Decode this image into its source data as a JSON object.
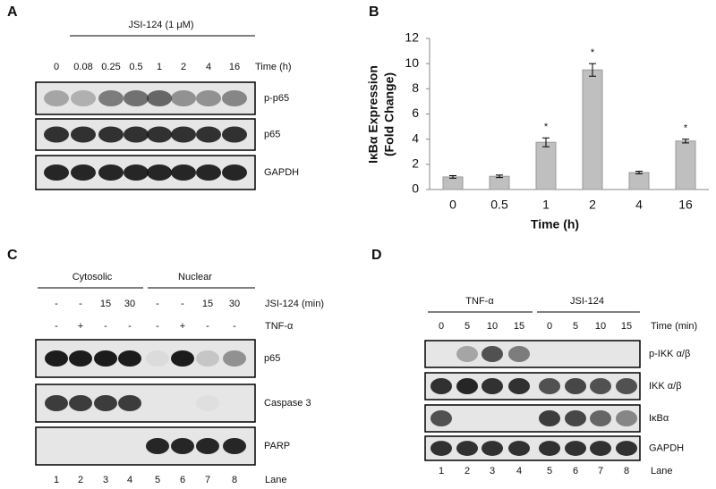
{
  "panel_a": {
    "letter": "A",
    "treatment": "JSI-124 (1 μM)",
    "times": [
      "0",
      "0.08",
      "0.25",
      "0.5",
      "1",
      "2",
      "4",
      "16"
    ],
    "time_label": "Time (h)",
    "blots": [
      "p-p65",
      "p65",
      "GAPDH"
    ]
  },
  "chart_data": {
    "type": "bar",
    "letter": "B",
    "categories": [
      "0",
      "0.5",
      "1",
      "2",
      "4",
      "16"
    ],
    "values": [
      1.0,
      1.05,
      3.75,
      9.5,
      1.35,
      3.85
    ],
    "errors": [
      0.1,
      0.1,
      0.35,
      0.5,
      0.1,
      0.15
    ],
    "markers": [
      null,
      null,
      "*",
      "*",
      null,
      "*"
    ],
    "color": "#bfbfbf",
    "ylabel": [
      "IκBα Expression",
      "(Fold Change)"
    ],
    "xlabel": "Time (h)",
    "ylim": [
      0,
      12
    ],
    "yticks": [
      0,
      2,
      4,
      6,
      8,
      10,
      12
    ]
  },
  "panel_c": {
    "letter": "C",
    "groups": [
      "Cytosolic",
      "Nuclear"
    ],
    "treatments": [
      {
        "name": "JSI-124 (min)",
        "lanes": [
          "-",
          "-",
          "15",
          "30",
          "-",
          "-",
          "15",
          "30"
        ]
      },
      {
        "name": "TNF-α",
        "lanes": [
          "-",
          "+",
          "-",
          "-",
          "-",
          "+",
          "-",
          "-"
        ]
      }
    ],
    "blots": [
      "p65",
      "Caspase 3",
      "PARP"
    ],
    "lane_label": "Lane",
    "lanes": [
      "1",
      "2",
      "3",
      "4",
      "5",
      "6",
      "7",
      "8"
    ]
  },
  "panel_d": {
    "letter": "D",
    "groups": [
      "TNF-α",
      "JSI-124"
    ],
    "times": [
      "0",
      "5",
      "10",
      "15",
      "0",
      "5",
      "10",
      "15"
    ],
    "time_label": "Time (min)",
    "blots": [
      "p-IKK α/β",
      "IKK α/β",
      "IκBα",
      "GAPDH"
    ],
    "lane_label": "Lane",
    "lanes": [
      "1",
      "2",
      "3",
      "4",
      "5",
      "6",
      "7",
      "8"
    ]
  }
}
